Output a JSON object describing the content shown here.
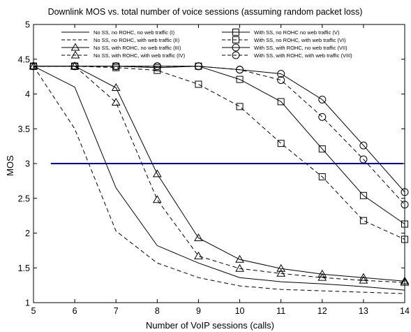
{
  "chart_data": {
    "type": "line",
    "title": "Downlink MOS vs. total number of voice sessions (assuming random packet loss)",
    "xlabel": "Number of VoIP sessions (calls)",
    "ylabel": "MOS",
    "xlim": [
      5,
      14
    ],
    "ylim": [
      1,
      5
    ],
    "xticks": [
      5,
      6,
      7,
      8,
      9,
      10,
      11,
      12,
      13,
      14
    ],
    "yticks": [
      1,
      1.5,
      2,
      2.5,
      3,
      3.5,
      4,
      4.5,
      5
    ],
    "ytick_labels": [
      "1",
      "1.5",
      "2",
      "2.5",
      "3",
      "3.5",
      "4",
      "4.5",
      "5"
    ],
    "grid": false,
    "legend_position": "top",
    "x": [
      5,
      6,
      7,
      8,
      9,
      10,
      11,
      12,
      13,
      14
    ],
    "series": [
      {
        "name": "No SS, no ROHC, no web traffic (I)",
        "values": [
          4.4,
          4.1,
          2.65,
          1.82,
          1.57,
          1.36,
          1.3,
          1.27,
          1.23,
          1.18
        ],
        "dash": "solid",
        "marker": "none"
      },
      {
        "name": "No SS, no ROHC, with web traffic (II)",
        "values": [
          4.4,
          3.5,
          2.03,
          1.57,
          1.36,
          1.24,
          1.19,
          1.17,
          1.15,
          1.13
        ],
        "dash": "dashed",
        "marker": "none"
      },
      {
        "name": "No SS, with ROHC, no web traffic (III)",
        "values": [
          4.4,
          4.4,
          4.09,
          2.85,
          1.93,
          1.62,
          1.49,
          1.41,
          1.36,
          1.31
        ],
        "dash": "solid",
        "marker": "triangle"
      },
      {
        "name": "No SS, with ROHC, with web traffic (IV)",
        "values": [
          4.4,
          4.4,
          3.88,
          2.48,
          1.67,
          1.49,
          1.42,
          1.36,
          1.32,
          1.29
        ],
        "dash": "dashed",
        "marker": "triangle"
      },
      {
        "name": "With SS, no ROHC no web traffic (V)",
        "values": [
          4.4,
          4.4,
          4.4,
          4.38,
          4.4,
          4.21,
          3.89,
          3.21,
          2.54,
          2.13
        ],
        "dash": "solid",
        "marker": "square"
      },
      {
        "name": "With SS, no ROHC, with web traffic (VI)",
        "values": [
          4.4,
          4.4,
          4.38,
          4.34,
          4.14,
          3.82,
          3.29,
          2.81,
          2.18,
          1.91
        ],
        "dash": "dashed",
        "marker": "square"
      },
      {
        "name": "With SS, with ROHC, no web traffic (VII)",
        "values": [
          4.4,
          4.4,
          4.4,
          4.4,
          4.4,
          4.35,
          4.29,
          3.92,
          3.26,
          2.59
        ],
        "dash": "solid",
        "marker": "circle"
      },
      {
        "name": "With SS, with ROHC, with web traffic (VIII)",
        "values": [
          4.4,
          4.4,
          4.4,
          4.4,
          4.4,
          4.35,
          4.2,
          3.67,
          3.06,
          2.41
        ],
        "dash": "dashed",
        "marker": "circle"
      }
    ],
    "reference_line": {
      "x": [
        5.42,
        13.96
      ],
      "y": 3,
      "color": "#0000cc"
    },
    "colors": {
      "axes": "#000000",
      "lines": "#000000",
      "reference": "#0000cc",
      "background": "#ffffff"
    }
  }
}
